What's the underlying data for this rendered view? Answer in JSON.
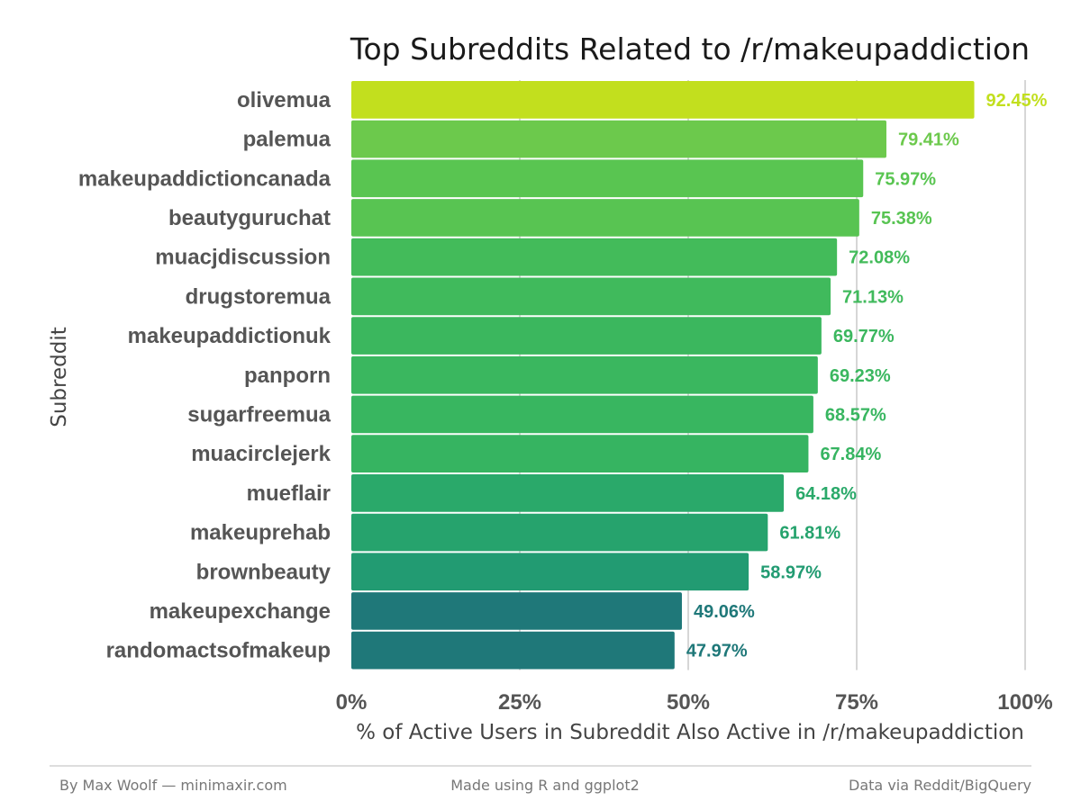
{
  "chart_data": {
    "type": "bar",
    "orientation": "horizontal",
    "title": "Top Subreddits Related to /r/makeupaddiction",
    "xlabel": "% of Active Users in Subreddit Also Active in /r/makeupaddiction",
    "ylabel": "Subreddit",
    "xlim": [
      0,
      100
    ],
    "x_ticks": [
      "0%",
      "25%",
      "50%",
      "75%",
      "100%"
    ],
    "grid": "vertical major gridlines",
    "color_scale": [
      "#1f7879",
      "#c2df1e"
    ],
    "categories": [
      "olivemua",
      "palemua",
      "makeupaddictioncanada",
      "beautyguruchat",
      "muacjdiscussion",
      "drugstoremua",
      "makeupaddictionuk",
      "panporn",
      "sugarfreemua",
      "muacirclejerk",
      "mueflair",
      "makeuprehab",
      "brownbeauty",
      "makeupexchange",
      "randomactsofmakeup"
    ],
    "values": [
      92.45,
      79.41,
      75.97,
      75.38,
      72.08,
      71.13,
      69.77,
      69.23,
      68.57,
      67.84,
      64.18,
      61.81,
      58.97,
      49.06,
      47.97
    ],
    "value_labels": [
      "92.45%",
      "79.41%",
      "75.97%",
      "75.38%",
      "72.08%",
      "71.13%",
      "69.77%",
      "69.23%",
      "68.57%",
      "67.84%",
      "64.18%",
      "61.81%",
      "58.97%",
      "49.06%",
      "47.97%"
    ],
    "bar_colors": [
      "#c2df1e",
      "#6cc94c",
      "#59c551",
      "#58c452",
      "#43bb5a",
      "#40ba5c",
      "#3bb75e",
      "#3ab75f",
      "#38b660",
      "#36b461",
      "#2aa96a",
      "#26a36d",
      "#229b72",
      "#1f7879",
      "#1f7879"
    ]
  },
  "footer": {
    "left": "By Max Woolf — minimaxir.com",
    "center": "Made using R and ggplot2",
    "right": "Data via Reddit/BigQuery"
  }
}
